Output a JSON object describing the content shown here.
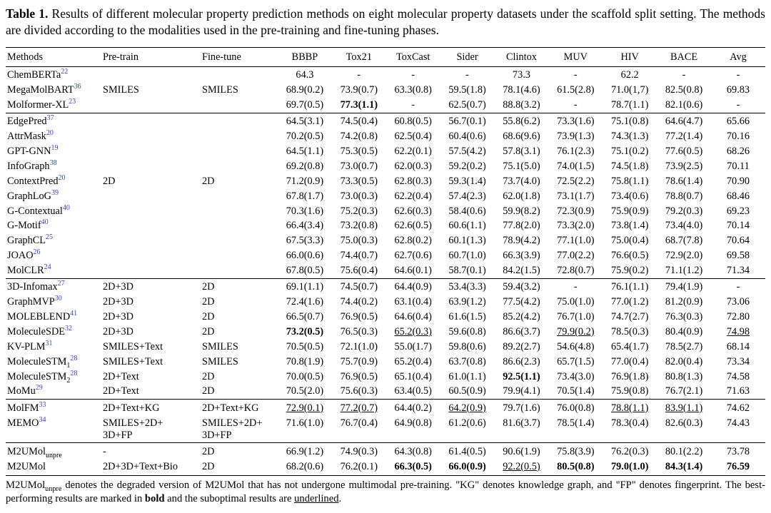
{
  "colors": {
    "citation": "#3345bb",
    "text": "#000000",
    "background": "#ffffff",
    "rule": "#000000"
  },
  "caption": {
    "label": "Table 1.",
    "text": "Results of different molecular property prediction methods on eight molecular property datasets under the scaffold split setting. The methods are divided according to the modalities used in the pre-training and fine-tuning phases."
  },
  "table": {
    "headers": [
      "Methods",
      "Pre-train",
      "Fine-tune",
      "BBBP",
      "Tox21",
      "ToxCast",
      "Sider",
      "Clintox",
      "MUV",
      "HIV",
      "BACE",
      "Avg"
    ],
    "groups": [
      {
        "rows": [
          {
            "method": "ChemBERTa",
            "cite": "22",
            "sub": "",
            "pretrain": "",
            "finetune": "",
            "values": [
              "64.3",
              "-",
              "-",
              "-",
              "73.3",
              "-",
              "62.2",
              "-",
              "-"
            ],
            "marks": {}
          },
          {
            "method": "MegaMolBART",
            "cite": "36",
            "sub": "",
            "pretrain": "SMILES",
            "finetune": "SMILES",
            "values": [
              "68.9(0.2)",
              "73.9(0.7)",
              "63.3(0.8)",
              "59.5(1.8)",
              "78.1(4.6)",
              "61.5(2.8)",
              "71.0(1,7)",
              "82.5(0.8)",
              "69.83"
            ],
            "marks": {}
          },
          {
            "method": "Molformer-XL",
            "cite": "23",
            "sub": "",
            "pretrain": "",
            "finetune": "",
            "values": [
              "69.7(0.5)",
              "77.3(1.1)",
              "-",
              "62.5(0.7)",
              "88.8(3.2)",
              "-",
              "78.7(1.1)",
              "82.1(0.6)",
              "-"
            ],
            "marks": {
              "1": "b"
            }
          }
        ]
      },
      {
        "rows": [
          {
            "method": "EdgePred",
            "cite": "37",
            "sub": "",
            "pretrain": "",
            "finetune": "",
            "values": [
              "64.5(3.1)",
              "74.5(0.4)",
              "60.8(0.5)",
              "56.7(0.1)",
              "55.8(6.2)",
              "73.3(1.6)",
              "75.1(0.8)",
              "64.6(4.7)",
              "65.66"
            ],
            "marks": {}
          },
          {
            "method": "AttrMask",
            "cite": "20",
            "sub": "",
            "pretrain": "",
            "finetune": "",
            "values": [
              "70.2(0.5)",
              "74.2(0.8)",
              "62.5(0.4)",
              "60.4(0.6)",
              "68.6(9.6)",
              "73.9(1.3)",
              "74.3(1.3)",
              "77.2(1.4)",
              "70.16"
            ],
            "marks": {}
          },
          {
            "method": "GPT-GNN",
            "cite": "19",
            "sub": "",
            "pretrain": "",
            "finetune": "",
            "values": [
              "64.5(1.1)",
              "75.3(0.5)",
              "62.2(0.1)",
              "57.5(4.2)",
              "57.8(3.1)",
              "76.1(2.3)",
              "75.1(0.2)",
              "77.6(0.5)",
              "68.26"
            ],
            "marks": {}
          },
          {
            "method": "InfoGraph",
            "cite": "38",
            "sub": "",
            "pretrain": "",
            "finetune": "",
            "values": [
              "69.2(0.8)",
              "73.0(0.7)",
              "62.0(0.3)",
              "59.2(0.2)",
              "75.1(5.0)",
              "74.0(1.5)",
              "74.5(1.8)",
              "73.9(2.5)",
              "70.11"
            ],
            "marks": {}
          },
          {
            "method": "ContextPred",
            "cite": "20",
            "sub": "",
            "pretrain": "2D",
            "finetune": "2D",
            "values": [
              "71.2(0.9)",
              "73.3(0.5)",
              "62.8(0.3)",
              "59.3(1.4)",
              "73.7(4.0)",
              "72.5(2.2)",
              "75.8(1.1)",
              "78.6(1.4)",
              "70.90"
            ],
            "marks": {}
          },
          {
            "method": "GraphLoG",
            "cite": "39",
            "sub": "",
            "pretrain": "",
            "finetune": "",
            "values": [
              "67.8(1.7)",
              "73.0(0.3)",
              "62.2(0.4)",
              "57.4(2.3)",
              "62.0(1.8)",
              "73.1(1.7)",
              "73.4(0.6)",
              "78.8(0.7)",
              "68.46"
            ],
            "marks": {}
          },
          {
            "method": "G-Contextual",
            "cite": "40",
            "sub": "",
            "pretrain": "",
            "finetune": "",
            "values": [
              "70.3(1.6)",
              "75.2(0.3)",
              "62.6(0.3)",
              "58.4(0.6)",
              "59.9(8.2)",
              "72.3(0.9)",
              "75.9(0.9)",
              "79.2(0.3)",
              "69.23"
            ],
            "marks": {}
          },
          {
            "method": "G-Motif",
            "cite": "40",
            "sub": "",
            "pretrain": "",
            "finetune": "",
            "values": [
              "66.4(3.4)",
              "73.2(0.8)",
              "62.6(0.5)",
              "60.6(1.1)",
              "77.8(2.0)",
              "73.3(2.0)",
              "73.8(1.4)",
              "73.4(4.0)",
              "70.14"
            ],
            "marks": {}
          },
          {
            "method": "GraphCL",
            "cite": "25",
            "sub": "",
            "pretrain": "",
            "finetune": "",
            "values": [
              "67.5(3.3)",
              "75.0(0.3)",
              "62.8(0.2)",
              "60.1(1.3)",
              "78.9(4.2)",
              "77.1(1.0)",
              "75.0(0.4)",
              "68.7(7.8)",
              "70.64"
            ],
            "marks": {}
          },
          {
            "method": "JOAO",
            "cite": "26",
            "sub": "",
            "pretrain": "",
            "finetune": "",
            "values": [
              "66.0(0.6)",
              "74.4(0.7)",
              "62.7(0.6)",
              "60.7(1.0)",
              "66.3(3.9)",
              "77.0(2.2)",
              "76.6(0.5)",
              "72.9(2.0)",
              "69.58"
            ],
            "marks": {}
          },
          {
            "method": "MolCLR",
            "cite": "24",
            "sub": "",
            "pretrain": "",
            "finetune": "",
            "values": [
              "67.8(0.5)",
              "75.6(0.4)",
              "64.6(0.1)",
              "58.7(0.1)",
              "84.2(1.5)",
              "72.8(0.7)",
              "75.9(0.2)",
              "71.1(1.2)",
              "71.34"
            ],
            "marks": {}
          }
        ]
      },
      {
        "rows": [
          {
            "method": "3D-Infomax",
            "cite": "27",
            "sub": "",
            "pretrain": "2D+3D",
            "finetune": "2D",
            "values": [
              "69.1(1.1)",
              "74.5(0.7)",
              "64.4(0.9)",
              "53.4(3.3)",
              "59.4(3.2)",
              "-",
              "76.1(1.1)",
              "79.4(1.9)",
              "-"
            ],
            "marks": {}
          },
          {
            "method": "GraphMVP",
            "cite": "30",
            "sub": "",
            "pretrain": "2D+3D",
            "finetune": "2D",
            "values": [
              "72.4(1.6)",
              "74.4(0.2)",
              "63.1(0.4)",
              "63.9(1.2)",
              "77.5(4.2)",
              "75.0(1.0)",
              "77.0(1.2)",
              "81.2(0.9)",
              "73.06"
            ],
            "marks": {}
          },
          {
            "method": "MOLEBLEND",
            "cite": "41",
            "sub": "",
            "pretrain": "2D+3D",
            "finetune": "2D",
            "values": [
              "66.5(0.7)",
              "76.9(0.5)",
              "64.6(0.4)",
              "61.6(1.5)",
              "85.2(4.2)",
              "76.7(1.0)",
              "74.7(2.7)",
              "76.3(0.3)",
              "72.80"
            ],
            "marks": {}
          },
          {
            "method": "MoleculeSDE",
            "cite": "32",
            "sub": "",
            "pretrain": "2D+3D",
            "finetune": "2D",
            "values": [
              "73.2(0.5)",
              "76.5(0.3)",
              "65.2(0.3)",
              "59.6(0.8)",
              "86.6(3.7)",
              "79.9(0.2)",
              "78.5(0.3)",
              "80.4(0.9)",
              "74.98"
            ],
            "marks": {
              "0": "b",
              "2": "u",
              "5": "u",
              "8": "u"
            }
          },
          {
            "method": "KV-PLM",
            "cite": "31",
            "sub": "",
            "pretrain": "SMILES+Text",
            "finetune": "SMILES",
            "values": [
              "70.5(0.5)",
              "72.1(1.0)",
              "55.0(1.7)",
              "59.8(0.6)",
              "89.2(2.7)",
              "54.6(4.8)",
              "65.4(1.7)",
              "78.5(2.7)",
              "68.14"
            ],
            "marks": {}
          },
          {
            "method": "MoleculeSTM",
            "cite": "28",
            "sub": "1",
            "pretrain": "SMILES+Text",
            "finetune": "SMILES",
            "values": [
              "70.8(1.9)",
              "75.7(0.9)",
              "65.2(0.4)",
              "63.7(0.8)",
              "86.6(2.3)",
              "65.7(1.5)",
              "77.0(0.4)",
              "82.0(0.4)",
              "73.34"
            ],
            "marks": {}
          },
          {
            "method": "MoleculeSTM",
            "cite": "28",
            "sub": "2",
            "pretrain": "2D+Text",
            "finetune": "2D",
            "values": [
              "70.0(0.5)",
              "76.9(0.5)",
              "65.1(0.4)",
              "61.0(1.1)",
              "92.5(1.1)",
              "73.4(3.0)",
              "76.9(1.8)",
              "80.8(1.3)",
              "74.58"
            ],
            "marks": {
              "4": "b"
            }
          },
          {
            "method": "MoMu",
            "cite": "29",
            "sub": "",
            "pretrain": "2D+Text",
            "finetune": "2D",
            "values": [
              "70.5(2.0)",
              "75.6(0.3)",
              "63.4(0.5)",
              "60.5(0.9)",
              "79.9(4.1)",
              "70.5(1.4)",
              "75.9(0.8)",
              "76.7(2.1)",
              "71.63"
            ],
            "marks": {}
          }
        ]
      },
      {
        "rows": [
          {
            "method": "MolFM",
            "cite": "33",
            "sub": "",
            "pretrain": "2D+Text+KG",
            "finetune": "2D+Text+KG",
            "values": [
              "72.9(0.1)",
              "77.2(0.7)",
              "64.4(0.2)",
              "64.2(0.9)",
              "79.7(1.6)",
              "76.0(0.8)",
              "78.8(1.1)",
              "83.9(1.1)",
              "74.62"
            ],
            "marks": {
              "0": "u",
              "1": "u",
              "3": "u",
              "6": "u",
              "7": "u"
            }
          },
          {
            "method": "MEMO",
            "cite": "34",
            "sub": "",
            "pretrain": "SMILES+2D+\n3D+FP",
            "finetune": "SMILES+2D+\n3D+FP",
            "values": [
              "71.6(1.0)",
              "76.7(0.4)",
              "64.9(0.8)",
              "61.2(0.6)",
              "81.6(3.7)",
              "78.5(1.4)",
              "78.3(0.4)",
              "82.6(0.3)",
              "74.43"
            ],
            "marks": {}
          }
        ]
      },
      {
        "rows": [
          {
            "method": "M2UMol",
            "cite": "",
            "sub": "unpre",
            "pretrain": "-",
            "finetune": "2D",
            "values": [
              "66.9(1.2)",
              "74.9(0.3)",
              "64.3(0.8)",
              "61.4(0.5)",
              "90.6(1.9)",
              "75.8(3.9)",
              "76.2(0.3)",
              "80.1(2.2)",
              "73.78"
            ],
            "marks": {}
          },
          {
            "method": "M2UMol",
            "cite": "",
            "sub": "",
            "pretrain": "2D+3D+Text+Bio",
            "finetune": "2D",
            "values": [
              "68.2(0.6)",
              "76.2(0.1)",
              "66.3(0.5)",
              "66.0(0.9)",
              "92.2(0.5)",
              "80.5(0.8)",
              "79.0(1.0)",
              "84.3(1.4)",
              "76.59"
            ],
            "marks": {
              "2": "b",
              "3": "b",
              "4": "u",
              "5": "b",
              "6": "b",
              "7": "b",
              "8": "b"
            }
          }
        ]
      }
    ]
  },
  "footnote": {
    "segments": [
      {
        "t": "M2UMol",
        "style": ""
      },
      {
        "t": "unpre",
        "style": "sub"
      },
      {
        "t": " denotes the degraded version of M2UMol that has not undergone multimodal pre-training. \"KG\" denotes knowledge graph, and \"FP\" denotes fingerprint. The best-performing results are marked in ",
        "style": ""
      },
      {
        "t": "bold",
        "style": "b"
      },
      {
        "t": " and the suboptimal results are ",
        "style": ""
      },
      {
        "t": "underlined",
        "style": "u"
      },
      {
        "t": ".",
        "style": ""
      }
    ]
  }
}
